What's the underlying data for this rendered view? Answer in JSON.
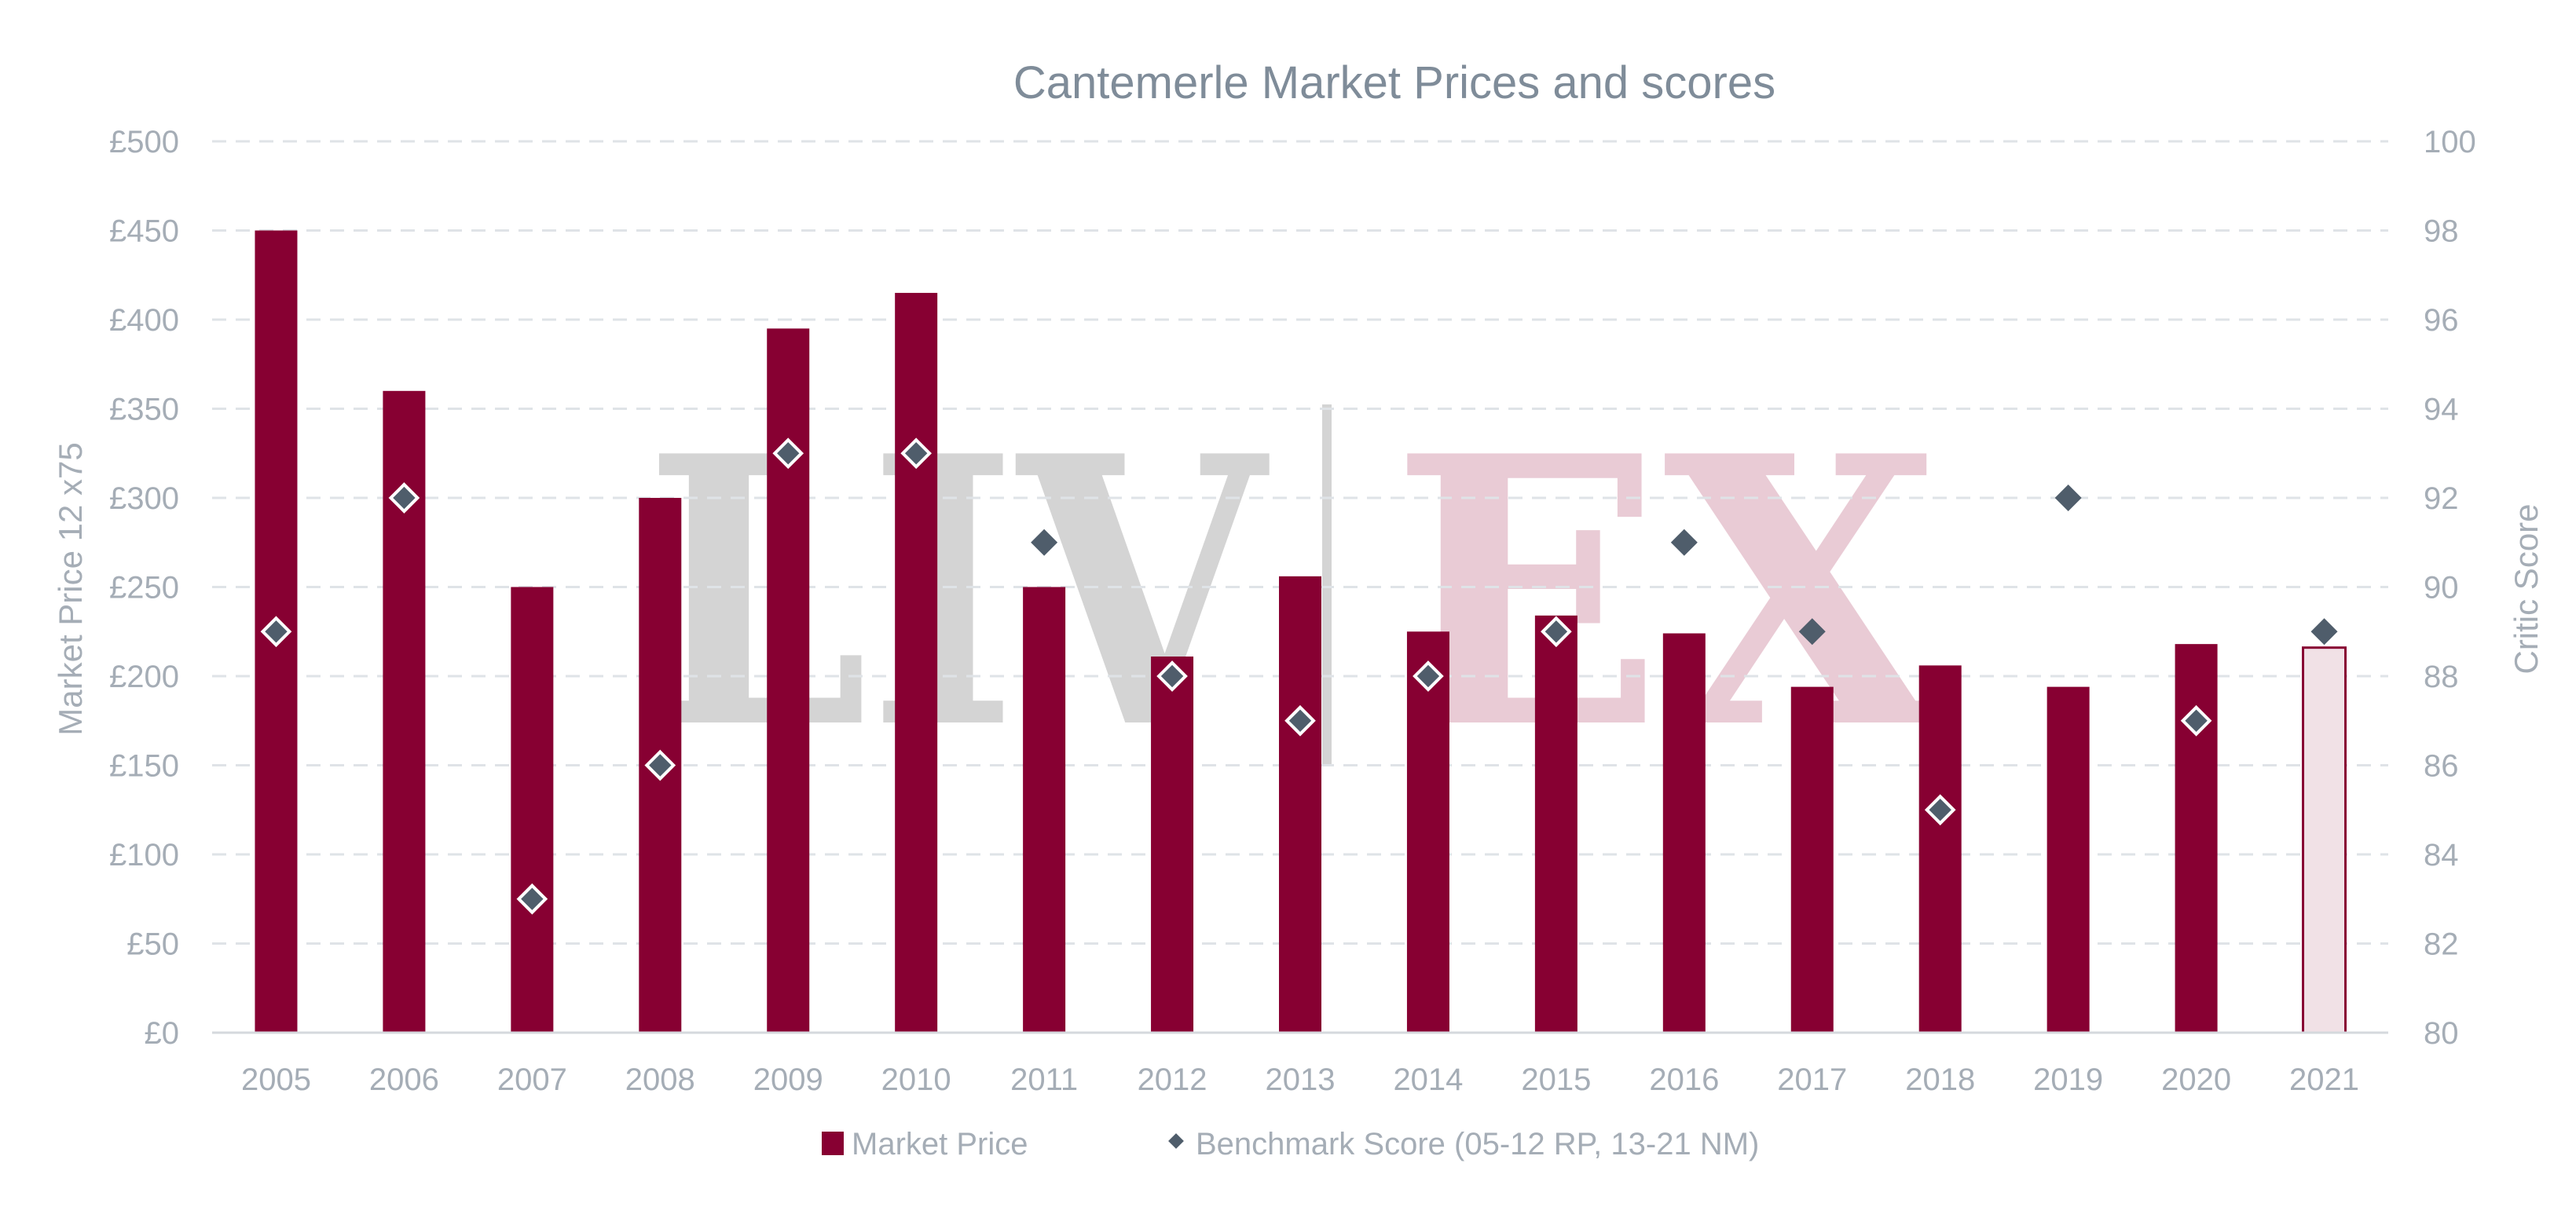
{
  "chart_data": {
    "type": "bar",
    "title": "Cantemerle Market Prices and scores",
    "categories": [
      "2005",
      "2006",
      "2007",
      "2008",
      "2009",
      "2010",
      "2011",
      "2012",
      "2013",
      "2014",
      "2015",
      "2016",
      "2017",
      "2018",
      "2019",
      "2020",
      "2021"
    ],
    "series": [
      {
        "name": "Market Price",
        "type": "bar",
        "axis": "left",
        "values": [
          450,
          360,
          250,
          300,
          395,
          415,
          250,
          211,
          256,
          225,
          234,
          224,
          194,
          206,
          194,
          218,
          216
        ],
        "highlight_last": true
      },
      {
        "name": "Benchmark Score (05-12 RP, 13-21 NM)",
        "type": "scatter",
        "marker": "diamond",
        "axis": "right",
        "values": [
          89,
          92,
          83,
          86,
          93,
          93,
          91,
          88,
          87,
          88,
          89,
          91,
          89,
          85,
          92,
          87,
          89
        ]
      }
    ],
    "ylabel": "Market Price 12 x75",
    "y2label": "Critic Score",
    "ylim": [
      0,
      500
    ],
    "y2lim": [
      80,
      100
    ],
    "yticks": [
      "£0",
      "£50",
      "£100",
      "£150",
      "£200",
      "£250",
      "£300",
      "£350",
      "£400",
      "£450",
      "£500"
    ],
    "y2ticks": [
      "80",
      "82",
      "84",
      "86",
      "88",
      "90",
      "92",
      "94",
      "96",
      "98",
      "100"
    ],
    "grid": true,
    "legend": "bottom",
    "colors": {
      "bar": "#870032",
      "bar_last_fill": "#f1e1e6",
      "marker": "#4f5d6b",
      "marker_outline": "#ffffff"
    }
  },
  "watermark": {
    "left": "LIV",
    "right": "EX",
    "left_color": "#d4d4d4",
    "right_color": "#e9cbd5"
  }
}
